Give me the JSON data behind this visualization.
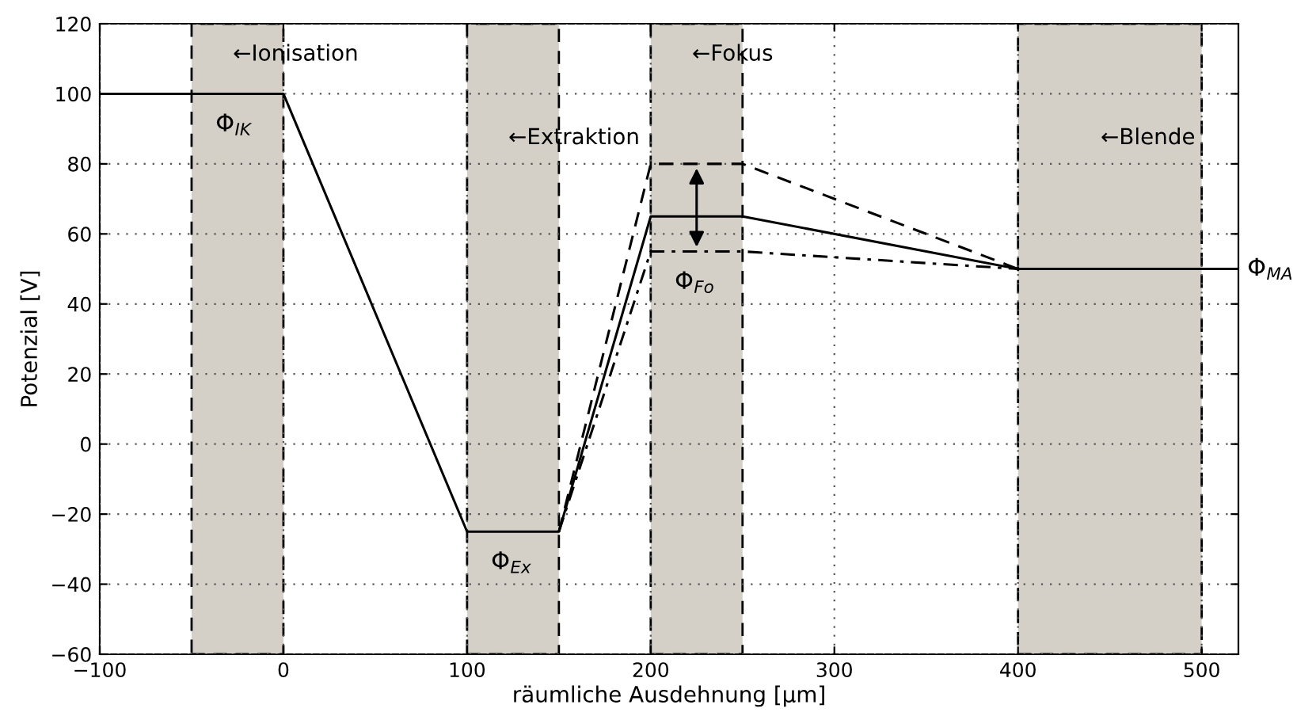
{
  "chart_data": {
    "type": "line",
    "xlabel": "räumliche Ausdehnung [µm]",
    "ylabel": "Potenzial [V]",
    "xlim": [
      -100,
      520
    ],
    "ylim": [
      -60,
      120
    ],
    "xticks": [
      {
        "value": -100,
        "label": "−100"
      },
      0,
      100,
      200,
      300,
      400,
      500
    ],
    "yticks": [
      {
        "value": -60,
        "label": "−60"
      },
      {
        "value": -40,
        "label": "−40"
      },
      {
        "value": -20,
        "label": "−20"
      },
      0,
      20,
      40,
      60,
      80,
      100,
      120
    ],
    "grid": true,
    "series": [
      {
        "color": "#000000",
        "line_style": "solid",
        "x": [
          -100,
          0,
          100,
          150,
          200,
          250,
          400,
          520
        ],
        "values": [
          100,
          100,
          -25,
          -25,
          65,
          65,
          50,
          50
        ]
      },
      {
        "color": "#000000",
        "line_style": "dashed",
        "x": [
          150,
          200,
          250,
          400
        ],
        "values": [
          -25,
          80,
          80,
          50
        ]
      },
      {
        "color": "#000000",
        "line_style": "dashdot",
        "x": [
          150,
          200,
          250,
          400
        ],
        "values": [
          -25,
          55,
          55,
          50
        ]
      }
    ],
    "bands": [
      {
        "axis": "x",
        "from": -50,
        "to": 0,
        "color": "#d4d0c8",
        "label": "←Ionisation"
      },
      {
        "axis": "x",
        "from": 100,
        "to": 150,
        "color": "#d4d0c8",
        "label": "←Extraktion"
      },
      {
        "axis": "x",
        "from": 200,
        "to": 250,
        "color": "#d4d0c8",
        "label": "←Fokus"
      },
      {
        "axis": "x",
        "from": 400,
        "to": 500,
        "color": "#d4d0c8",
        "label": "←Blende"
      }
    ],
    "annotations": [
      {
        "text": "Φ$_{IK}$",
        "x": -25,
        "y": 100
      },
      {
        "text": "Φ$_{Ex}$",
        "x": 125,
        "y": -25
      },
      {
        "text": "Φ$_{Fo}$",
        "x": 225,
        "y": 55
      },
      {
        "text": "Φ$_{MA}$",
        "x": 520,
        "y": 50
      }
    ]
  }
}
